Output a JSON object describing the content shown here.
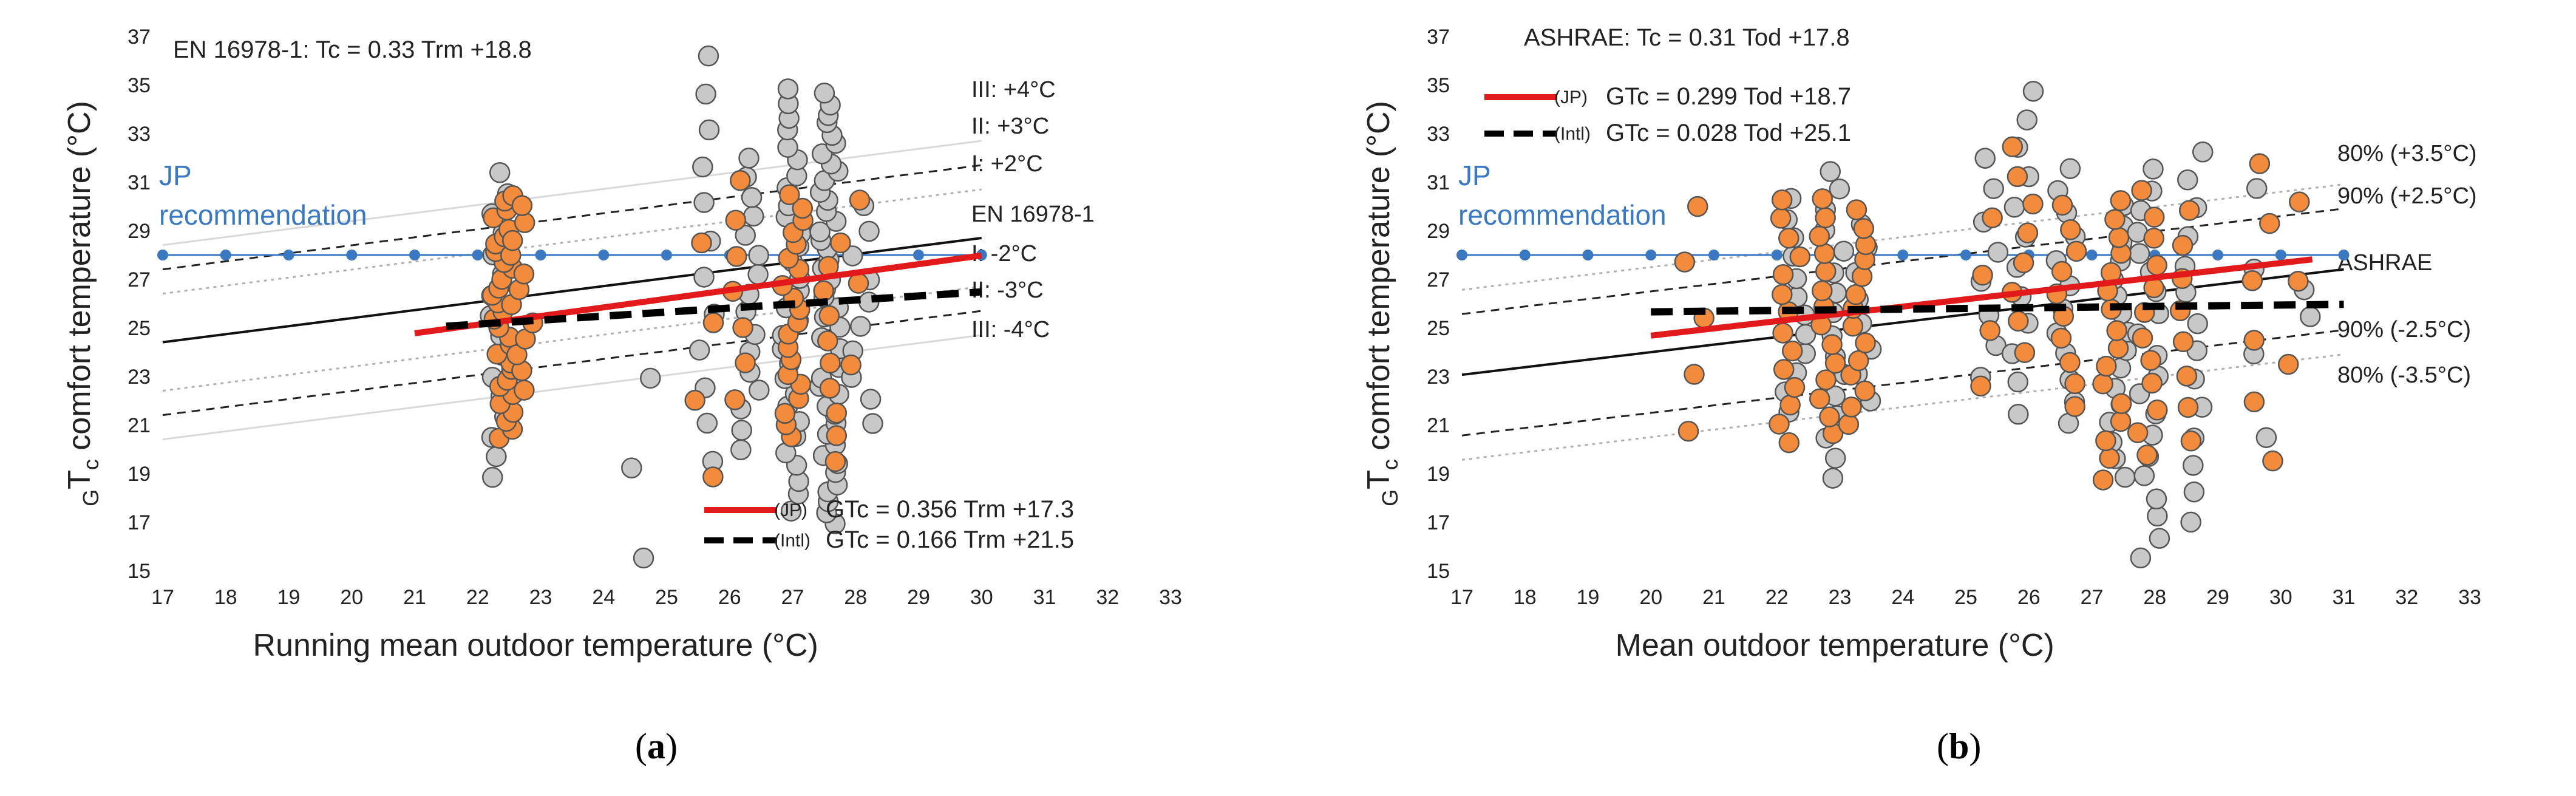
{
  "chart_data": [
    {
      "type": "scatter",
      "panel_caption": "a",
      "title": "EN 16978-1: Tc = 0.33 Trm +18.8",
      "xlabel": "Running mean outdoor temperature (°C)",
      "ylabel_sub_pre": "G",
      "ylabel_main": "T",
      "ylabel_sub_post": "c",
      "ylabel_rest": " comfort temperature (°C)",
      "xlim": [
        17,
        33
      ],
      "ylim": [
        15,
        37
      ],
      "xticks": [
        17,
        18,
        19,
        20,
        21,
        22,
        23,
        24,
        25,
        26,
        27,
        28,
        29,
        30,
        31,
        32,
        33
      ],
      "yticks": [
        15,
        17,
        19,
        21,
        23,
        25,
        27,
        29,
        31,
        33,
        35,
        37
      ],
      "recommendation": {
        "label_line1": "JP",
        "label_line2": "recommendation",
        "value": 28,
        "x": [
          17,
          18,
          19,
          20,
          21,
          22,
          23,
          24,
          25,
          26,
          27,
          28,
          29,
          30
        ],
        "color": "#3a78c2"
      },
      "base_line": {
        "slope": 0.33,
        "intercept": 18.8,
        "x": [
          17,
          30
        ],
        "label": "EN 16978-1"
      },
      "bands": [
        {
          "offset": 4,
          "label": "III: +4°C",
          "style": "light"
        },
        {
          "offset": 3,
          "label": "II: +3°C",
          "style": "dash"
        },
        {
          "offset": 2,
          "label": "I: +2°C",
          "style": "dot"
        },
        {
          "offset": -2,
          "label": "I: -2°C",
          "style": "dot"
        },
        {
          "offset": -3,
          "label": "II: -3°C",
          "style": "dash"
        },
        {
          "offset": -4,
          "label": "III: -4°C",
          "style": "light"
        }
      ],
      "fits": [
        {
          "name": "(JP)",
          "formula": "GTc = 0.356 Trm +17.3",
          "slope": 0.356,
          "intercept": 17.3,
          "x": [
            21,
            30
          ],
          "color": "#e31a1c",
          "style": "solid"
        },
        {
          "name": "(Intl)",
          "formula": "GTc = 0.166 Trm +21.5",
          "slope": 0.166,
          "intercept": 21.5,
          "x": [
            21.5,
            30
          ],
          "color": "#000000",
          "style": "dash"
        }
      ],
      "series": [
        {
          "name": "JP",
          "color": "#f28b3c",
          "clusters": [
            {
              "x": 22.4,
              "ymin": 20.5,
              "ymax": 30.5,
              "n": 30
            },
            {
              "x": 22.7,
              "ymin": 22.5,
              "ymax": 30.0,
              "n": 12
            },
            {
              "x": 25.6,
              "ymin": 18.8,
              "ymax": 28.5,
              "n": 4
            },
            {
              "x": 26.2,
              "ymin": 22.0,
              "ymax": 31.0,
              "n": 7
            },
            {
              "x": 27.0,
              "ymin": 20.5,
              "ymax": 30.5,
              "n": 20
            },
            {
              "x": 27.6,
              "ymin": 19.5,
              "ymax": 28.5,
              "n": 10
            },
            {
              "x": 28.1,
              "ymin": 23.5,
              "ymax": 30.2,
              "n": 3
            }
          ]
        },
        {
          "name": "Intl",
          "color": "#c8c8c8",
          "clusters": [
            {
              "x": 22.3,
              "ymin": 18.8,
              "ymax": 31.4,
              "n": 16
            },
            {
              "x": 24.6,
              "ymin": 15.5,
              "ymax": 23.0,
              "n": 3
            },
            {
              "x": 25.6,
              "ymin": 19.5,
              "ymax": 36.2,
              "n": 12
            },
            {
              "x": 26.3,
              "ymin": 20.0,
              "ymax": 32.0,
              "n": 16
            },
            {
              "x": 27.0,
              "ymin": 17.5,
              "ymax": 34.9,
              "n": 30
            },
            {
              "x": 27.6,
              "ymin": 17.0,
              "ymax": 34.6,
              "n": 45
            },
            {
              "x": 28.1,
              "ymin": 21.0,
              "ymax": 30.0,
              "n": 10
            }
          ]
        }
      ]
    },
    {
      "type": "scatter",
      "panel_caption": "b",
      "title": "ASHRAE: Tc = 0.31 Tod +17.8",
      "xlabel": "Mean outdoor temperature (°C)",
      "ylabel_sub_pre": "G",
      "ylabel_main": "T",
      "ylabel_sub_post": "c",
      "ylabel_rest": " comfort temperature (°C)",
      "xlim": [
        17,
        33
      ],
      "ylim": [
        15,
        37
      ],
      "xticks": [
        17,
        18,
        19,
        20,
        21,
        22,
        23,
        24,
        25,
        26,
        27,
        28,
        29,
        30,
        31,
        32,
        33
      ],
      "yticks": [
        15,
        17,
        19,
        21,
        23,
        25,
        27,
        29,
        31,
        33,
        35,
        37
      ],
      "recommendation": {
        "label_line1": "JP",
        "label_line2": "recommendation",
        "value": 28,
        "x": [
          17,
          18,
          19,
          20,
          21,
          22,
          23,
          24,
          25,
          26,
          27,
          28,
          29,
          30,
          31
        ],
        "color": "#3a78c2"
      },
      "base_line": {
        "slope": 0.31,
        "intercept": 17.8,
        "x": [
          17,
          31
        ],
        "label": "ASHRAE"
      },
      "bands": [
        {
          "offset": 3.5,
          "label": "80% (+3.5°C)",
          "style": "dot"
        },
        {
          "offset": 2.5,
          "label": "90% (+2.5°C)",
          "style": "dash"
        },
        {
          "offset": -2.5,
          "label": "90% (-2.5°C)",
          "style": "dash"
        },
        {
          "offset": -3.5,
          "label": "80% (-3.5°C)",
          "style": "dot"
        }
      ],
      "fits": [
        {
          "name": "(JP)",
          "formula": "GTc = 0.299 Tod +18.7",
          "slope": 0.299,
          "intercept": 18.7,
          "x": [
            20,
            30.5
          ],
          "color": "#e31a1c",
          "style": "solid"
        },
        {
          "name": "(Intl)",
          "formula": "GTc = 0.028 Tod +25.1",
          "slope": 0.028,
          "intercept": 25.1,
          "x": [
            20,
            31
          ],
          "color": "#000000",
          "style": "dash"
        }
      ],
      "series": [
        {
          "name": "JP",
          "color": "#f28b3c",
          "clusters": [
            {
              "x": 20.7,
              "ymin": 20.8,
              "ymax": 30.0,
              "n": 5
            },
            {
              "x": 22.2,
              "ymin": 20.2,
              "ymax": 30.3,
              "n": 14
            },
            {
              "x": 22.8,
              "ymin": 20.6,
              "ymax": 30.3,
              "n": 14
            },
            {
              "x": 23.3,
              "ymin": 21.0,
              "ymax": 29.8,
              "n": 14
            },
            {
              "x": 25.3,
              "ymin": 22.6,
              "ymax": 29.5,
              "n": 4
            },
            {
              "x": 25.9,
              "ymin": 24.0,
              "ymax": 32.5,
              "n": 8
            },
            {
              "x": 26.6,
              "ymin": 21.8,
              "ymax": 30.0,
              "n": 10
            },
            {
              "x": 27.3,
              "ymin": 18.8,
              "ymax": 30.3,
              "n": 16
            },
            {
              "x": 27.9,
              "ymin": 19.7,
              "ymax": 30.6,
              "n": 12
            },
            {
              "x": 28.5,
              "ymin": 20.3,
              "ymax": 29.8,
              "n": 8
            },
            {
              "x": 29.7,
              "ymin": 19.5,
              "ymax": 31.8,
              "n": 6
            },
            {
              "x": 30.2,
              "ymin": 23.5,
              "ymax": 30.2,
              "n": 3
            }
          ]
        },
        {
          "name": "Intl",
          "color": "#c8c8c8",
          "clusters": [
            {
              "x": 22.3,
              "ymin": 21.5,
              "ymax": 30.3,
              "n": 12
            },
            {
              "x": 22.9,
              "ymin": 18.8,
              "ymax": 31.5,
              "n": 16
            },
            {
              "x": 23.4,
              "ymin": 22.0,
              "ymax": 29.3,
              "n": 8
            },
            {
              "x": 25.4,
              "ymin": 23.0,
              "ymax": 32.0,
              "n": 8
            },
            {
              "x": 25.9,
              "ymin": 21.5,
              "ymax": 34.8,
              "n": 12
            },
            {
              "x": 26.6,
              "ymin": 21.0,
              "ymax": 31.6,
              "n": 12
            },
            {
              "x": 27.4,
              "ymin": 18.8,
              "ymax": 30.0,
              "n": 16
            },
            {
              "x": 27.9,
              "ymin": 15.5,
              "ymax": 31.5,
              "n": 20
            },
            {
              "x": 28.6,
              "ymin": 17.0,
              "ymax": 32.3,
              "n": 14
            },
            {
              "x": 29.7,
              "ymin": 20.5,
              "ymax": 30.8,
              "n": 4
            },
            {
              "x": 30.3,
              "ymin": 25.5,
              "ymax": 26.5,
              "n": 2
            }
          ]
        }
      ]
    }
  ]
}
